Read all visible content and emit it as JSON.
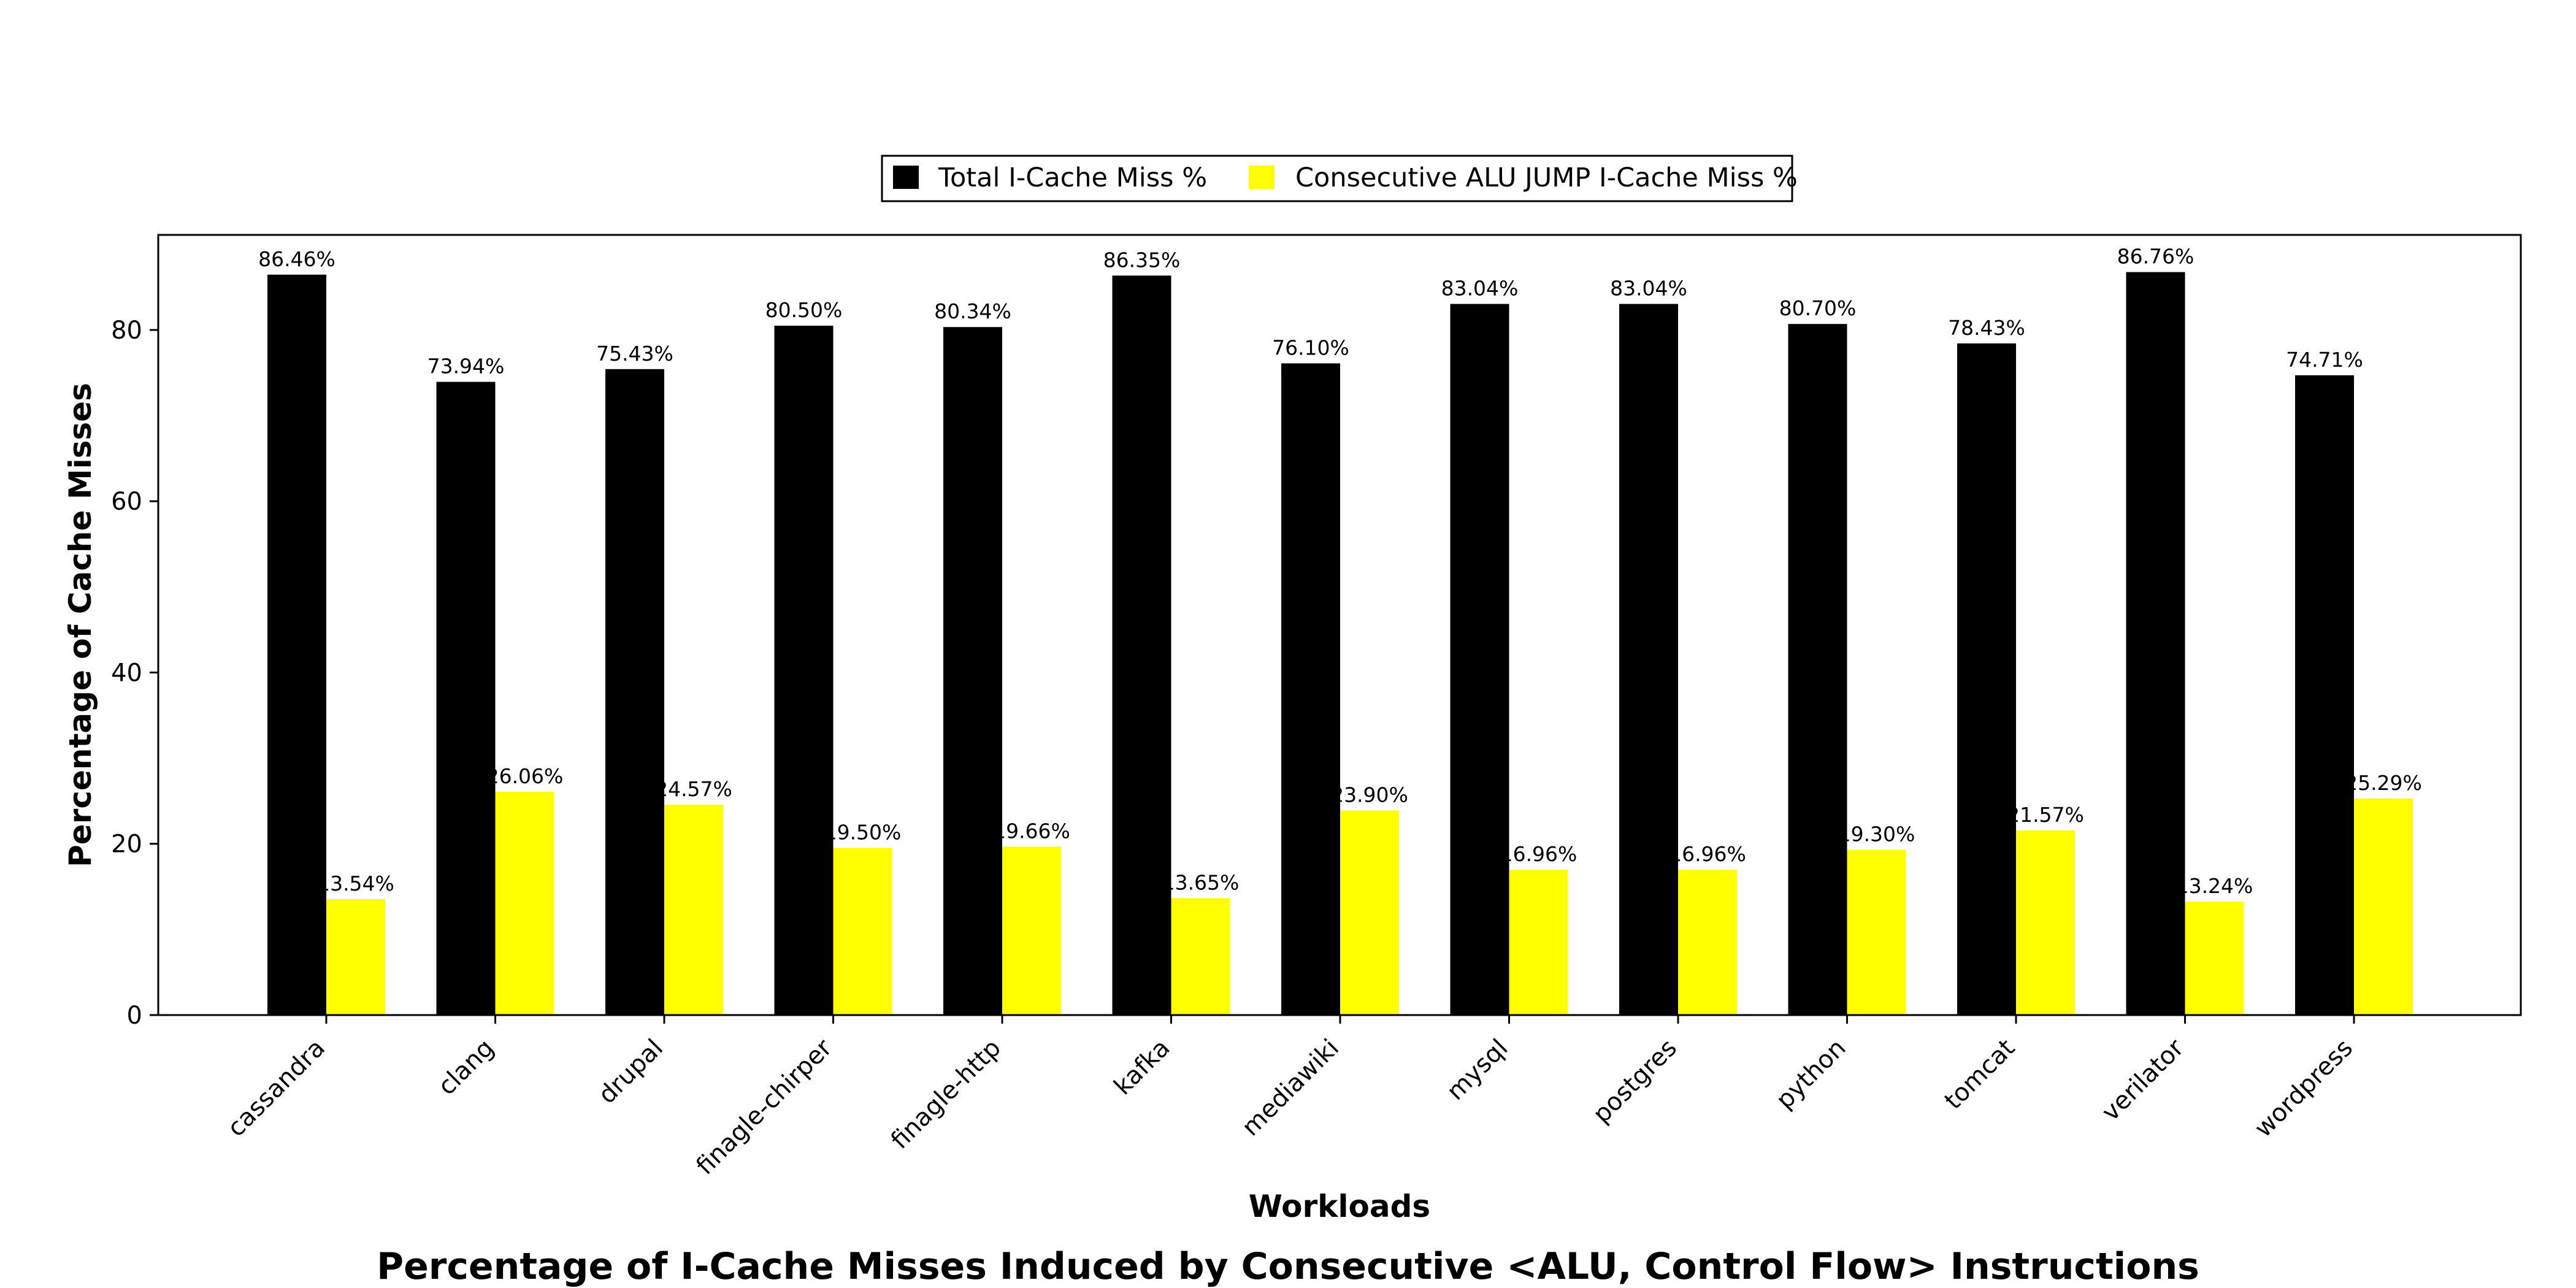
{
  "chart_data": {
    "type": "bar",
    "title": "Percentage of I-Cache Misses Induced by Consecutive <ALU, Control Flow> Instructions",
    "xlabel": "Workloads",
    "ylabel": "Percentage of Cache Misses",
    "ylim": [
      0,
      91.1
    ],
    "yticks": [
      0,
      20,
      40,
      60,
      80
    ],
    "grid": false,
    "legend_placement": "top-center",
    "categories": [
      "cassandra",
      "clang",
      "drupal",
      "finagle-chirper",
      "finagle-http",
      "kafka",
      "mediawiki",
      "mysql",
      "postgres",
      "python",
      "tomcat",
      "verilator",
      "wordpress"
    ],
    "series": [
      {
        "name": "Total I-Cache Miss %",
        "color": "#000000",
        "values": [
          86.46,
          73.94,
          75.43,
          80.5,
          80.34,
          86.35,
          76.1,
          83.04,
          83.04,
          80.7,
          78.43,
          86.76,
          74.71
        ],
        "labels": [
          "86.46%",
          "73.94%",
          "75.43%",
          "80.50%",
          "80.34%",
          "86.35%",
          "76.10%",
          "83.04%",
          "83.04%",
          "80.70%",
          "78.43%",
          "86.76%",
          "74.71%"
        ]
      },
      {
        "name": "Consecutive ALU JUMP I-Cache Miss %",
        "color": "#ffff00",
        "values": [
          13.54,
          26.06,
          24.57,
          19.5,
          19.66,
          13.65,
          23.9,
          16.96,
          16.96,
          19.3,
          21.57,
          13.24,
          25.29
        ],
        "labels": [
          "13.54%",
          "26.06%",
          "24.57%",
          "19.50%",
          "19.66%",
          "13.65%",
          "23.90%",
          "16.96%",
          "16.96%",
          "19.30%",
          "21.57%",
          "13.24%",
          "25.29%"
        ]
      }
    ]
  }
}
